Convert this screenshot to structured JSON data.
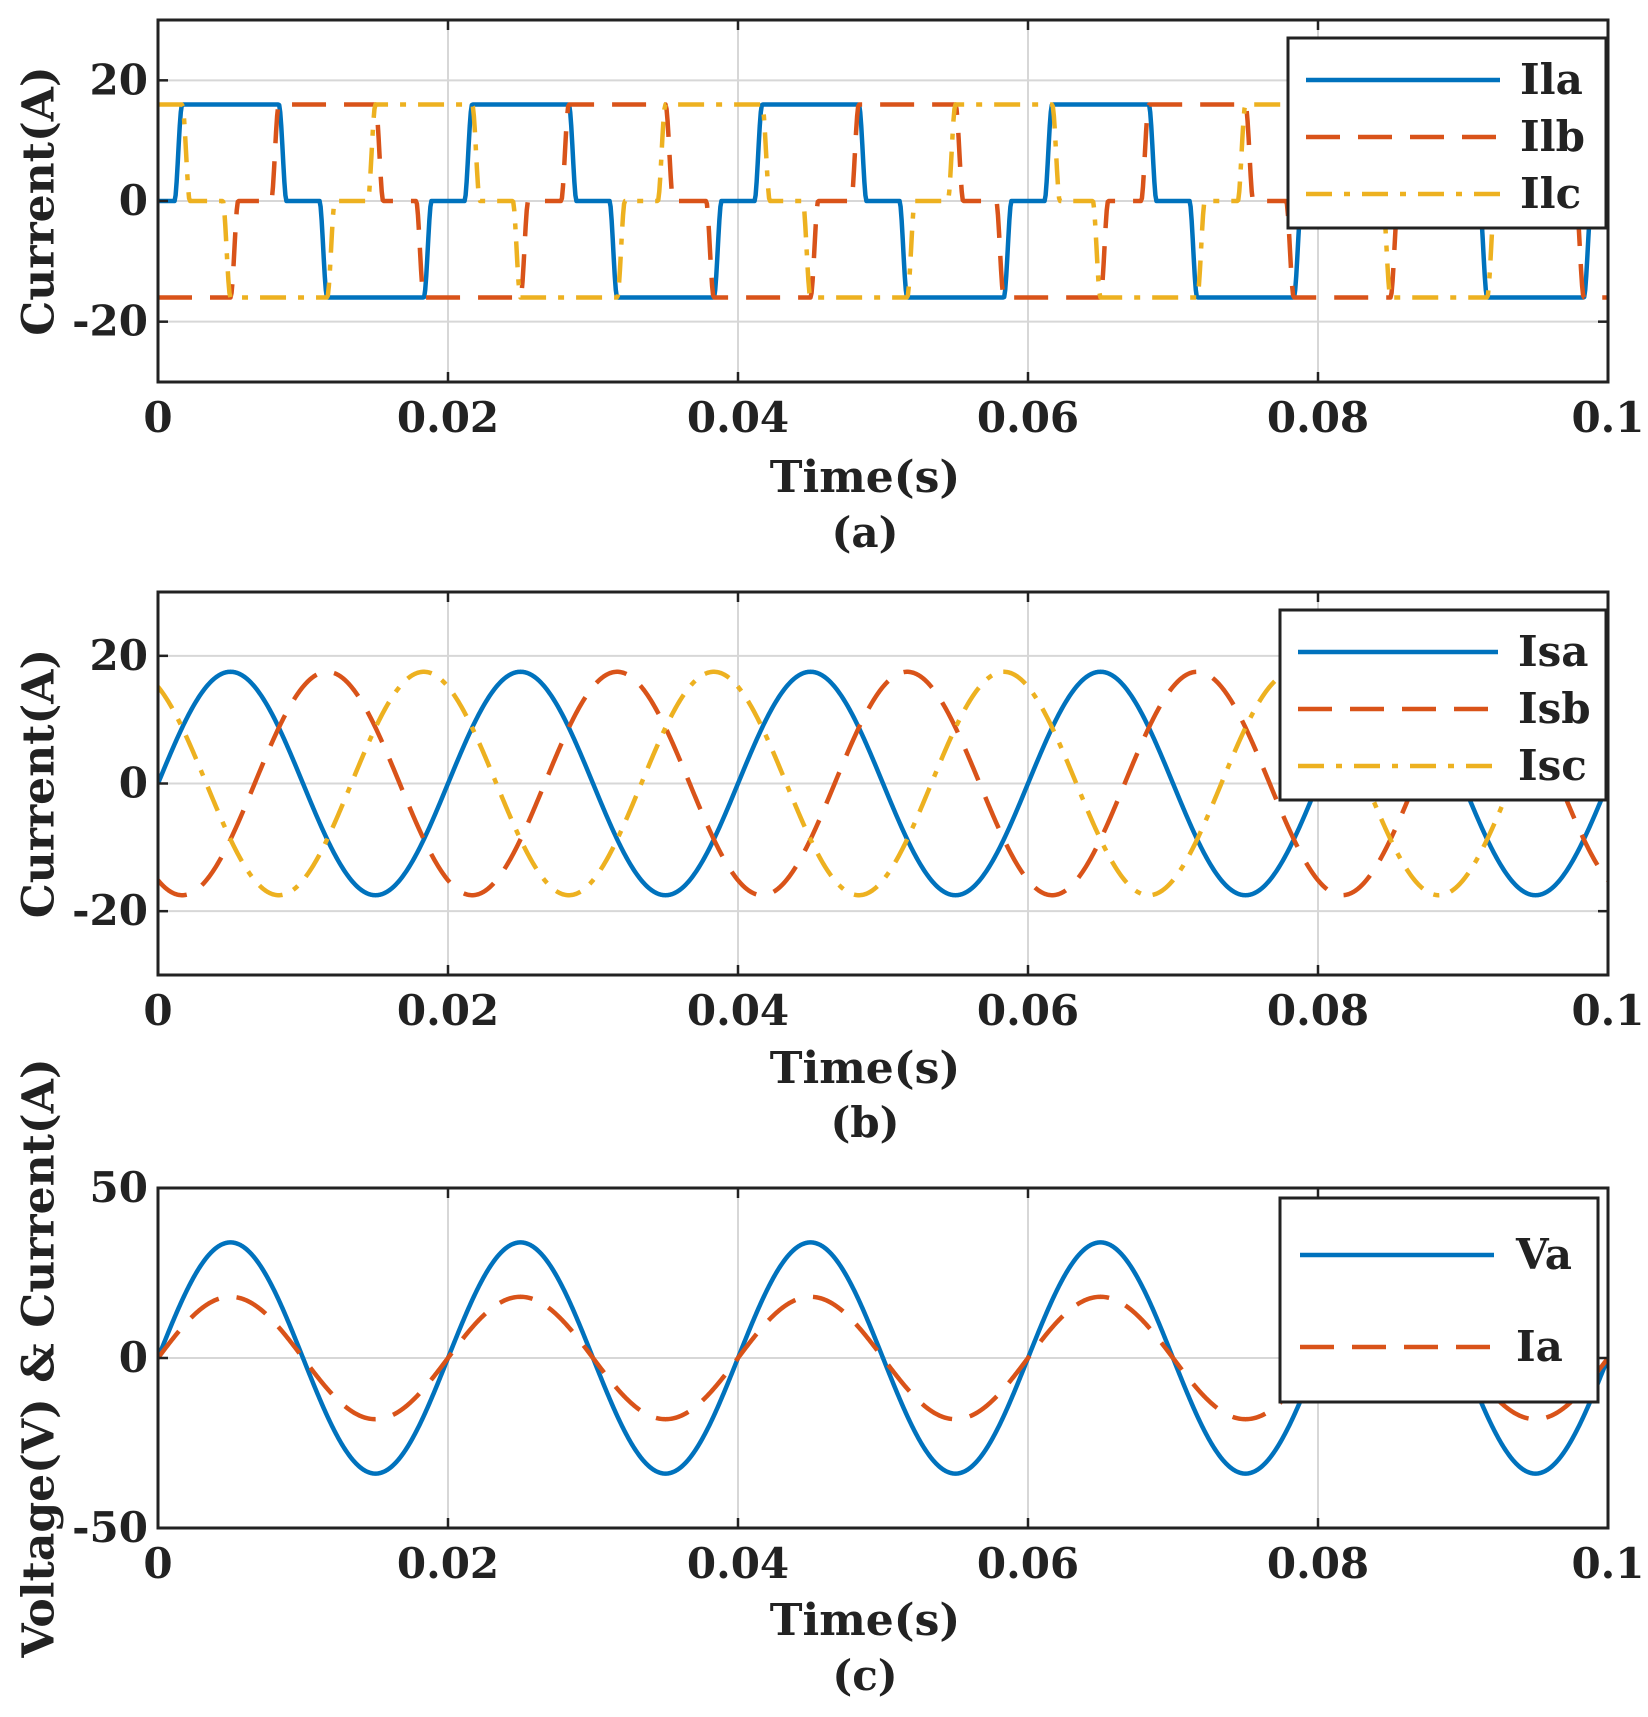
{
  "chart_data": [
    {
      "type": "line",
      "panel_label": "(a)",
      "xlabel": "Time(s)",
      "ylabel": "Current(A)",
      "xlim": [
        0,
        0.1
      ],
      "ylim": [
        -30,
        30
      ],
      "xticks": [
        0,
        0.02,
        0.04,
        0.06,
        0.08,
        0.1
      ],
      "xtick_labels": [
        "0",
        "0.02",
        "0.04",
        "0.06",
        "0.08",
        "0.1"
      ],
      "yticks": [
        -20,
        0,
        20
      ],
      "ytick_labels": [
        "-20",
        "0",
        "20"
      ],
      "grid": true,
      "legend_position": "top-right",
      "series": [
        {
          "name": "Ila",
          "color": "#0072BD",
          "dash": "solid",
          "kind": "square",
          "amplitude": 16,
          "frequency_hz": 50,
          "phase_deg": 0
        },
        {
          "name": "Ilb",
          "color": "#D95319",
          "dash": "dashed",
          "kind": "square",
          "amplitude": 16,
          "frequency_hz": 50,
          "phase_deg": -120
        },
        {
          "name": "Ilc",
          "color": "#EDB120",
          "dash": "dashdot",
          "kind": "square",
          "amplitude": 16,
          "frequency_hz": 50,
          "phase_deg": 120
        }
      ]
    },
    {
      "type": "line",
      "panel_label": "(b)",
      "xlabel": "Time(s)",
      "ylabel": "Current(A)",
      "xlim": [
        0,
        0.1
      ],
      "ylim": [
        -30,
        30
      ],
      "xticks": [
        0,
        0.02,
        0.04,
        0.06,
        0.08,
        0.1
      ],
      "xtick_labels": [
        "0",
        "0.02",
        "0.04",
        "0.06",
        "0.08",
        "0.1"
      ],
      "yticks": [
        -20,
        0,
        20
      ],
      "ytick_labels": [
        "-20",
        "0",
        "20"
      ],
      "grid": true,
      "legend_position": "top-right",
      "series": [
        {
          "name": "Isa",
          "color": "#0072BD",
          "dash": "solid",
          "kind": "sine",
          "amplitude": 17.5,
          "frequency_hz": 50,
          "phase_deg": 0
        },
        {
          "name": "Isb",
          "color": "#D95319",
          "dash": "dashed",
          "kind": "sine",
          "amplitude": 17.5,
          "frequency_hz": 50,
          "phase_deg": -120
        },
        {
          "name": "Isc",
          "color": "#EDB120",
          "dash": "dashdot",
          "kind": "sine",
          "amplitude": 17.5,
          "frequency_hz": 50,
          "phase_deg": 120
        }
      ]
    },
    {
      "type": "line",
      "panel_label": "(c)",
      "xlabel": "Time(s)",
      "ylabel": "Voltage(V) & Current(A)",
      "xlim": [
        0,
        0.1
      ],
      "ylim": [
        -50,
        50
      ],
      "xticks": [
        0,
        0.02,
        0.04,
        0.06,
        0.08,
        0.1
      ],
      "xtick_labels": [
        "0",
        "0.02",
        "0.04",
        "0.06",
        "0.08",
        "0.1"
      ],
      "yticks": [
        -50,
        0,
        50
      ],
      "ytick_labels": [
        "-50",
        "0",
        "50"
      ],
      "grid": true,
      "legend_position": "top-right",
      "series": [
        {
          "name": "Va",
          "color": "#0072BD",
          "dash": "solid",
          "kind": "sine",
          "amplitude": 34,
          "frequency_hz": 50,
          "phase_deg": 0
        },
        {
          "name": "Ia",
          "color": "#D95319",
          "dash": "dashed",
          "kind": "sine",
          "amplitude": 18,
          "frequency_hz": 50,
          "phase_deg": 0
        }
      ]
    }
  ]
}
